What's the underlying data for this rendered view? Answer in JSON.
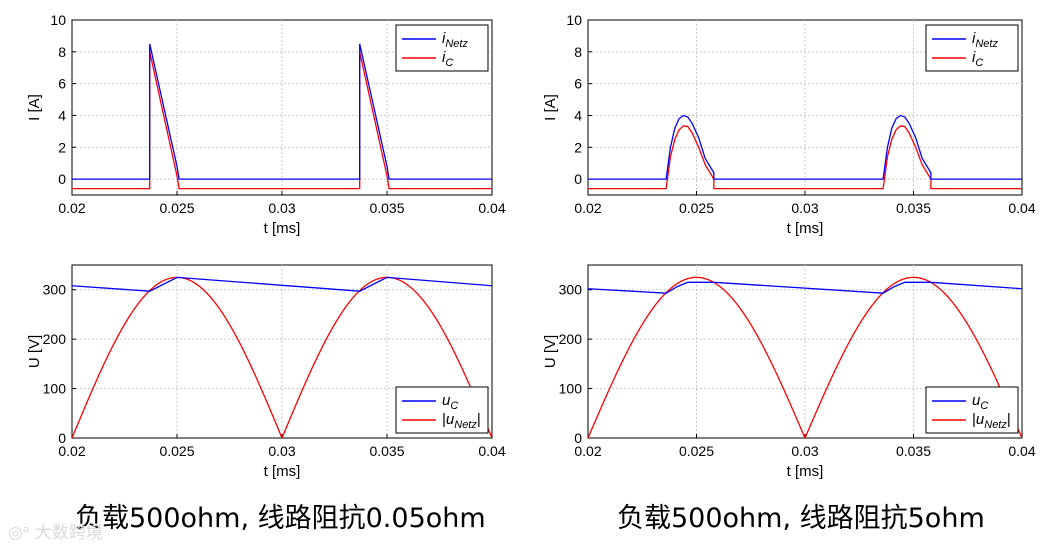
{
  "captions": {
    "left": "负载500ohm, 线路阻抗0.05ohm",
    "right": "负载500ohm, 线路阻抗5ohm"
  },
  "watermark": "大数跨境",
  "colors": {
    "series_blue": "#0000ff",
    "series_red": "#ff0000",
    "grid": "#c8c8c8"
  },
  "chart_data": [
    {
      "id": "current-0.05ohm",
      "type": "line",
      "title": "",
      "xlabel": "t [ms]",
      "ylabel": "I [A]",
      "xlim": [
        0.02,
        0.04
      ],
      "ylim": [
        -1,
        10
      ],
      "xticks": [
        "0.02",
        "0.025",
        "0.03",
        "0.035",
        "0.04"
      ],
      "yticks": [
        "0",
        "2",
        "4",
        "6",
        "8",
        "10"
      ],
      "grid": true,
      "legend_position": "top-right",
      "series": [
        {
          "name": "i_Netz",
          "color": "blue",
          "points": [
            [
              0.02,
              0
            ],
            [
              0.0237,
              0
            ],
            [
              0.0237,
              8.5
            ],
            [
              0.025,
              0.8
            ],
            [
              0.0251,
              0
            ],
            [
              0.0337,
              0
            ],
            [
              0.0337,
              8.5
            ],
            [
              0.035,
              0.8
            ],
            [
              0.0351,
              0
            ],
            [
              0.04,
              0
            ]
          ]
        },
        {
          "name": "i_C",
          "color": "red",
          "points": [
            [
              0.02,
              -0.6
            ],
            [
              0.0237,
              -0.6
            ],
            [
              0.0237,
              8.0
            ],
            [
              0.025,
              0.2
            ],
            [
              0.0251,
              -0.6
            ],
            [
              0.0337,
              -0.6
            ],
            [
              0.0337,
              8.0
            ],
            [
              0.035,
              0.2
            ],
            [
              0.0351,
              -0.6
            ],
            [
              0.04,
              -0.6
            ]
          ]
        }
      ]
    },
    {
      "id": "current-5ohm",
      "type": "line",
      "title": "",
      "xlabel": "t [ms]",
      "ylabel": "I [A]",
      "xlim": [
        0.02,
        0.04
      ],
      "ylim": [
        -1,
        10
      ],
      "xticks": [
        "0.02",
        "0.025",
        "0.03",
        "0.035",
        "0.04"
      ],
      "yticks": [
        "0",
        "2",
        "4",
        "6",
        "8",
        "10"
      ],
      "grid": true,
      "legend_position": "top-right",
      "series": [
        {
          "name": "i_Netz",
          "color": "blue",
          "points": [
            [
              0.02,
              0
            ],
            [
              0.0236,
              0
            ],
            [
              0.0238,
              2.0
            ],
            [
              0.024,
              3.2
            ],
            [
              0.0242,
              3.8
            ],
            [
              0.0244,
              4.0
            ],
            [
              0.0246,
              3.9
            ],
            [
              0.0248,
              3.5
            ],
            [
              0.0251,
              2.6
            ],
            [
              0.0254,
              1.3
            ],
            [
              0.0258,
              0.4
            ],
            [
              0.0258,
              0
            ],
            [
              0.0336,
              0
            ],
            [
              0.0338,
              2.0
            ],
            [
              0.034,
              3.2
            ],
            [
              0.0342,
              3.8
            ],
            [
              0.0344,
              4.0
            ],
            [
              0.0346,
              3.9
            ],
            [
              0.0348,
              3.5
            ],
            [
              0.0351,
              2.6
            ],
            [
              0.0354,
              1.3
            ],
            [
              0.0358,
              0.4
            ],
            [
              0.0358,
              0
            ],
            [
              0.04,
              0
            ]
          ]
        },
        {
          "name": "i_C",
          "color": "red",
          "points": [
            [
              0.02,
              -0.6
            ],
            [
              0.0236,
              -0.6
            ],
            [
              0.0238,
              1.4
            ],
            [
              0.024,
              2.5
            ],
            [
              0.0242,
              3.1
            ],
            [
              0.0244,
              3.35
            ],
            [
              0.0246,
              3.3
            ],
            [
              0.0248,
              2.9
            ],
            [
              0.0251,
              2.0
            ],
            [
              0.0254,
              0.9
            ],
            [
              0.0258,
              0
            ],
            [
              0.0258,
              -0.6
            ],
            [
              0.0336,
              -0.6
            ],
            [
              0.0338,
              1.4
            ],
            [
              0.034,
              2.5
            ],
            [
              0.0342,
              3.1
            ],
            [
              0.0344,
              3.35
            ],
            [
              0.0346,
              3.3
            ],
            [
              0.0348,
              2.9
            ],
            [
              0.0351,
              2.0
            ],
            [
              0.0354,
              0.9
            ],
            [
              0.0358,
              0
            ],
            [
              0.0358,
              -0.6
            ],
            [
              0.04,
              -0.6
            ]
          ]
        }
      ]
    },
    {
      "id": "voltage-0.05ohm",
      "type": "line",
      "title": "",
      "xlabel": "t [ms]",
      "ylabel": "U [V]",
      "xlim": [
        0.02,
        0.04
      ],
      "ylim": [
        0,
        350
      ],
      "xticks": [
        "0.02",
        "0.025",
        "0.03",
        "0.035",
        "0.04"
      ],
      "yticks": [
        "0",
        "100",
        "200",
        "300"
      ],
      "grid": true,
      "legend_position": "bottom-right",
      "series": [
        {
          "name": "u_C",
          "color": "blue",
          "points": [
            [
              0.02,
              308
            ],
            [
              0.0237,
              297
            ],
            [
              0.025,
              325
            ],
            [
              0.0337,
              297
            ],
            [
              0.035,
              325
            ],
            [
              0.04,
              308
            ]
          ]
        },
        {
          "name": "|u_Netz|",
          "color": "red",
          "type": "rectified_sine",
          "amplitude": 325,
          "period_half": 0.01,
          "zero_at": 0.02
        }
      ]
    },
    {
      "id": "voltage-5ohm",
      "type": "line",
      "title": "",
      "xlabel": "t [ms]",
      "ylabel": "U [V]",
      "xlim": [
        0.02,
        0.04
      ],
      "ylim": [
        0,
        350
      ],
      "xticks": [
        "0.02",
        "0.025",
        "0.03",
        "0.035",
        "0.04"
      ],
      "yticks": [
        "0",
        "100",
        "200",
        "300"
      ],
      "grid": true,
      "legend_position": "bottom-right",
      "series": [
        {
          "name": "u_C",
          "color": "blue",
          "points": [
            [
              0.02,
              302
            ],
            [
              0.0236,
              293
            ],
            [
              0.0241,
              306
            ],
            [
              0.0246,
              315
            ],
            [
              0.0258,
              315
            ],
            [
              0.0336,
              293
            ],
            [
              0.0341,
              306
            ],
            [
              0.0346,
              315
            ],
            [
              0.0358,
              315
            ],
            [
              0.04,
              302
            ]
          ]
        },
        {
          "name": "|u_Netz|",
          "color": "red",
          "type": "rectified_sine",
          "amplitude": 325,
          "period_half": 0.01,
          "zero_at": 0.02
        }
      ]
    }
  ]
}
